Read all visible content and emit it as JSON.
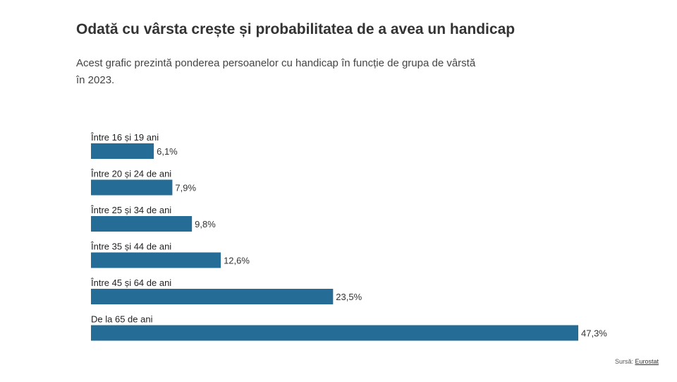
{
  "header": {
    "title": "Odată cu vârsta crește și probabilitatea de a avea un handicap",
    "subtitle": "Acest grafic prezintă ponderea persoanelor cu handicap în funcție de grupa de vârstă în 2023."
  },
  "footer": {
    "source_prefix": "Sursă:",
    "source_name": "Eurostat"
  },
  "colors": {
    "bar": "#256c96"
  },
  "chart_data": {
    "type": "bar",
    "orientation": "horizontal",
    "categories": [
      "Între 16 și 19 ani",
      "Între 20 și 24 de ani",
      "Între 25 și 34 de ani",
      "Între 35 și 44 de ani",
      "Între 45 și 64 de ani",
      "De la 65 de ani"
    ],
    "values": [
      6.1,
      7.9,
      9.8,
      12.6,
      23.5,
      47.3
    ],
    "value_labels": [
      "6,1%",
      "7,9%",
      "9,8%",
      "12,6%",
      "23,5%",
      "47,3%"
    ],
    "unit": "%",
    "xlim": [
      0,
      47.3
    ],
    "grid": false,
    "legend": "none"
  }
}
